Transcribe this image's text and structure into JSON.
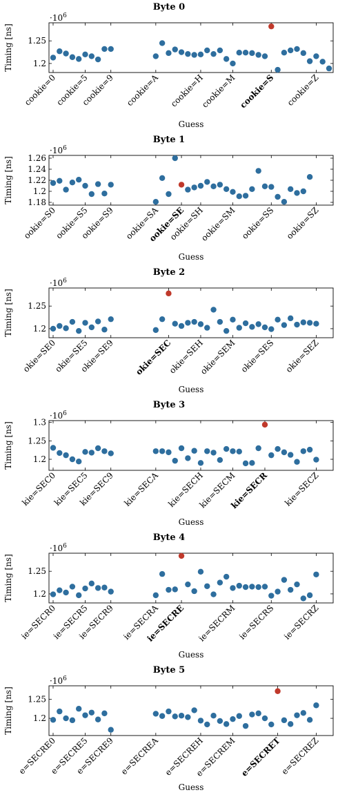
{
  "chart_data": [
    {
      "type": "scatter",
      "title": "Byte 0",
      "xlabel": "Guess",
      "ylabel": "Timing [ns]",
      "y_multiplier": "·10^6",
      "ylim": [
        1.18,
        1.29
      ],
      "yticks": [
        1.2,
        1.25
      ],
      "ytick_labels": [
        "1.2",
        "1.25"
      ],
      "tick_labels": [
        "cookie=0",
        "cookie=5",
        "cookie=9",
        "cookie=A",
        "cookie=H",
        "cookie=M",
        "cookie=S",
        "cookie=Z"
      ],
      "tick_index": [
        0,
        5,
        9,
        16,
        23,
        28,
        34,
        41
      ],
      "highlight_index": 34,
      "point_color": "#2e6e9e",
      "highlight_color": "#c0392b",
      "values": [
        1.213,
        1.227,
        1.222,
        1.214,
        1.21,
        1.22,
        1.216,
        1.209,
        1.232,
        1.232,
        null,
        null,
        null,
        null,
        null,
        null,
        1.216,
        1.245,
        1.223,
        1.231,
        1.225,
        1.221,
        1.219,
        1.22,
        1.229,
        1.221,
        1.229,
        1.21,
        1.2,
        1.224,
        1.224,
        1.223,
        1.219,
        1.216,
        1.282,
        1.186,
        1.224,
        1.229,
        1.232,
        1.223,
        1.205,
        1.216,
        1.204,
        1.189
      ]
    },
    {
      "type": "scatter",
      "title": "Byte 1",
      "xlabel": "Guess",
      "ylabel": "Timing [ns]",
      "y_multiplier": "·10^6",
      "ylim": [
        1.175,
        1.265
      ],
      "yticks": [
        1.18,
        1.2,
        1.22,
        1.24,
        1.26
      ],
      "ytick_labels": [
        "1.18",
        "1.2",
        "1.22",
        "1.24",
        "1.26"
      ],
      "tick_labels": [
        "ookie=S0",
        "ookie=S5",
        "ookie=S9",
        "ookie=SA",
        "ookie=SE",
        "ookie=SH",
        "ookie=SM",
        "ookie=SS",
        "ookie=SZ"
      ],
      "tick_index": [
        0,
        5,
        9,
        16,
        20,
        23,
        28,
        34,
        41
      ],
      "highlight_index": 20,
      "point_color": "#2e6e9e",
      "highlight_color": "#c0392b",
      "values": [
        1.215,
        1.219,
        1.203,
        1.216,
        1.221,
        1.21,
        1.195,
        1.213,
        1.196,
        1.212,
        null,
        null,
        null,
        null,
        null,
        null,
        1.181,
        1.224,
        1.195,
        1.26,
        1.212,
        1.203,
        1.207,
        1.21,
        1.217,
        1.209,
        1.212,
        1.204,
        1.199,
        1.191,
        1.192,
        1.204,
        1.237,
        1.209,
        1.208,
        1.19,
        1.181,
        1.204,
        1.197,
        1.2,
        1.226,
        null,
        null,
        null
      ]
    },
    {
      "type": "scatter",
      "title": "Byte 2",
      "xlabel": "Guess",
      "ylabel": "Timing [ns]",
      "y_multiplier": "·10^6",
      "ylim": [
        1.18,
        1.29
      ],
      "yticks": [
        1.2,
        1.25
      ],
      "ytick_labels": [
        "1.2",
        "1.25"
      ],
      "tick_labels": [
        "okie=SE0",
        "okie=SE5",
        "okie=SE9",
        "okie=SEC",
        "okie=SEH",
        "okie=SEM",
        "okie=SES",
        "okie=SEZ"
      ],
      "tick_index": [
        0,
        5,
        9,
        18,
        23,
        28,
        34,
        41
      ],
      "highlight_index": 18,
      "point_color": "#2e6e9e",
      "highlight_color": "#c0392b",
      "values": [
        1.2,
        1.206,
        1.201,
        1.215,
        1.195,
        1.213,
        1.203,
        1.216,
        1.198,
        1.221,
        null,
        null,
        null,
        null,
        null,
        null,
        1.197,
        1.221,
        1.278,
        1.211,
        1.206,
        1.213,
        1.215,
        1.21,
        1.202,
        1.242,
        1.215,
        1.195,
        1.22,
        1.202,
        1.212,
        1.204,
        1.21,
        1.203,
        1.199,
        1.22,
        1.208,
        1.223,
        1.209,
        1.214,
        1.213,
        1.211,
        null,
        null
      ]
    },
    {
      "type": "scatter",
      "title": "Byte 3",
      "xlabel": "Guess",
      "ylabel": "Timing [ns]",
      "y_multiplier": "·10^6",
      "ylim": [
        1.17,
        1.305
      ],
      "yticks": [
        1.2,
        1.25,
        1.3
      ],
      "ytick_labels": [
        "1.2",
        "1.25",
        "1.3"
      ],
      "tick_labels": [
        "kie=SEC0",
        "kie=SEC5",
        "kie=SEC9",
        "kie=SECA",
        "kie=SECH",
        "kie=SECM",
        "kie=SECR",
        "kie=SECZ"
      ],
      "tick_index": [
        0,
        5,
        9,
        16,
        23,
        28,
        33,
        41
      ],
      "highlight_index": 33,
      "point_color": "#2e6e9e",
      "highlight_color": "#c0392b",
      "values": [
        1.231,
        1.217,
        1.211,
        1.2,
        1.194,
        1.22,
        1.218,
        1.23,
        1.222,
        1.216,
        null,
        null,
        null,
        null,
        null,
        null,
        1.222,
        1.222,
        1.219,
        1.196,
        1.23,
        1.203,
        1.223,
        1.19,
        1.222,
        1.218,
        1.198,
        1.228,
        1.222,
        1.221,
        1.189,
        1.19,
        1.23,
        1.294,
        1.211,
        1.228,
        1.219,
        1.212,
        1.193,
        1.222,
        1.226,
        1.199,
        null,
        null
      ]
    },
    {
      "type": "scatter",
      "title": "Byte 4",
      "xlabel": "Guess",
      "ylabel": "Timing [ns]",
      "y_multiplier": "·10^6",
      "ylim": [
        1.18,
        1.29
      ],
      "yticks": [
        1.2,
        1.25
      ],
      "ytick_labels": [
        "1.2",
        "1.25"
      ],
      "tick_labels": [
        "ie=SECR0",
        "ie=SECR5",
        "ie=SECR9",
        "ie=SECRA",
        "ie=SECRE",
        "ie=SECRM",
        "ie=SECRS",
        "ie=SECRZ"
      ],
      "tick_index": [
        0,
        5,
        9,
        16,
        20,
        28,
        34,
        41
      ],
      "highlight_index": 20,
      "point_color": "#2e6e9e",
      "highlight_color": "#c0392b",
      "values": [
        1.199,
        1.208,
        1.203,
        1.216,
        1.197,
        1.212,
        1.223,
        1.213,
        1.214,
        1.205,
        null,
        null,
        null,
        null,
        null,
        null,
        1.197,
        1.244,
        1.209,
        1.21,
        1.284,
        1.221,
        1.206,
        1.249,
        1.217,
        1.199,
        1.225,
        1.238,
        1.213,
        1.218,
        1.215,
        1.216,
        1.215,
        1.216,
        1.196,
        1.205,
        1.231,
        1.209,
        1.221,
        1.19,
        1.197,
        1.243,
        null,
        null
      ]
    },
    {
      "type": "scatter",
      "title": "Byte 5",
      "xlabel": "Guess",
      "ylabel": "Timing [ns]",
      "y_multiplier": "·10^6",
      "ylim": [
        1.155,
        1.285
      ],
      "yticks": [
        1.2,
        1.25
      ],
      "ytick_labels": [
        "1.2",
        "1.25"
      ],
      "tick_labels": [
        "e=SECRE0",
        "e=SECRE5",
        "e=SECRE9",
        "e=SECREA",
        "e=SECREH",
        "e=SECREM",
        "e=SECRET",
        "e=SECREZ"
      ],
      "tick_index": [
        0,
        5,
        9,
        16,
        23,
        28,
        35,
        41
      ],
      "highlight_index": 35,
      "point_color": "#2e6e9e",
      "highlight_color": "#c0392b",
      "values": [
        1.196,
        1.218,
        1.2,
        1.195,
        1.225,
        1.208,
        1.215,
        1.197,
        1.213,
        1.17,
        null,
        null,
        null,
        null,
        null,
        null,
        1.212,
        1.206,
        1.218,
        1.205,
        1.207,
        1.203,
        1.221,
        1.194,
        1.184,
        1.207,
        1.193,
        1.185,
        1.198,
        1.206,
        1.18,
        1.21,
        1.213,
        1.2,
        1.184,
        1.271,
        1.195,
        1.185,
        1.208,
        1.214,
        1.196,
        1.234,
        null,
        null
      ]
    }
  ]
}
